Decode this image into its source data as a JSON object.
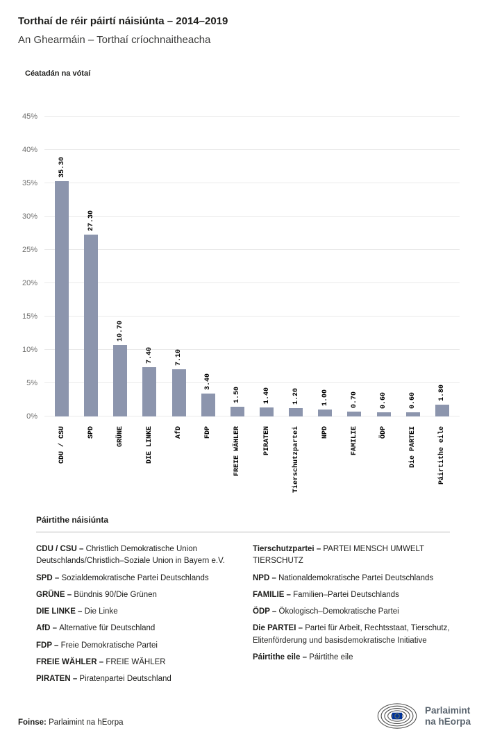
{
  "header": {
    "title": "Torthaí de réir páirtí náisiúnta – 2014–2019",
    "subtitle": "An Ghearmáin – Torthaí críochnaitheacha"
  },
  "chart_data": {
    "type": "bar",
    "title": "Céatadán na vótaí",
    "categories": [
      "CDU / CSU",
      "SPD",
      "GRÜNE",
      "DIE LINKE",
      "AfD",
      "FDP",
      "FREIE WÄHLER",
      "PIRATEN",
      "Tierschutzpartei",
      "NPD",
      "FAMILIE",
      "ÖDP",
      "Die PARTEI",
      "Páirtithe eile"
    ],
    "values": [
      35.3,
      27.3,
      10.7,
      7.4,
      7.1,
      3.4,
      1.5,
      1.4,
      1.2,
      1.0,
      0.7,
      0.6,
      0.6,
      1.8
    ],
    "value_labels": [
      "35.30",
      "27.30",
      "10.70",
      "7.40",
      "7.10",
      "3.40",
      "1.50",
      "1.40",
      "1.20",
      "1.00",
      "0.70",
      "0.60",
      "0.60",
      "1.80"
    ],
    "xlabel": "",
    "ylabel": "Céatadán na vótaí",
    "ylim": [
      0,
      45
    ],
    "ytick_step": 5,
    "ytick_labels": [
      "0%",
      "5%",
      "10%",
      "15%",
      "20%",
      "25%",
      "30%",
      "35%",
      "40%",
      "45%"
    ],
    "bar_color": "#8c95ad",
    "grid": true,
    "legend_position": "none"
  },
  "legend": {
    "heading": "Páirtithe náisiúnta",
    "columns": [
      [
        {
          "abbr": "CDU / CSU –",
          "name": "Christlich Demokratische Union Deutschlands/Christlich–Soziale Union in Bayern e.V."
        },
        {
          "abbr": "SPD –",
          "name": "Sozialdemokratische Partei Deutschlands"
        },
        {
          "abbr": "GRÜNE –",
          "name": "Bündnis 90/Die Grünen"
        },
        {
          "abbr": "DIE LINKE –",
          "name": "Die Linke"
        },
        {
          "abbr": "AfD –",
          "name": "Alternative für Deutschland"
        },
        {
          "abbr": "FDP –",
          "name": "Freie Demokratische Partei"
        },
        {
          "abbr": "FREIE WÄHLER –",
          "name": "FREIE WÄHLER"
        },
        {
          "abbr": "PIRATEN –",
          "name": "Piratenpartei Deutschland"
        }
      ],
      [
        {
          "abbr": "Tierschutzpartei –",
          "name": "PARTEI MENSCH UMWELT TIERSCHUTZ"
        },
        {
          "abbr": "NPD –",
          "name": "Nationaldemokratische Partei Deutschlands"
        },
        {
          "abbr": "FAMILIE –",
          "name": "Familien–Partei Deutschlands"
        },
        {
          "abbr": "ÖDP –",
          "name": "Ökologisch–Demokratische Partei"
        },
        {
          "abbr": "Die PARTEI –",
          "name": "Partei für Arbeit, Rechtsstaat, Tierschutz, Elitenförderung und basisdemokratische Initiative"
        },
        {
          "abbr": "Páirtithe eile –",
          "name": "Páirtithe eile"
        }
      ]
    ]
  },
  "footer": {
    "source_label": "Foinse:",
    "source_text": "Parlaimint na hEorpa",
    "logo_line1": "Parlaimint",
    "logo_line2": "na hEorpa"
  },
  "colors": {
    "bar": "#8c95ad",
    "gridline": "#e9e9e9",
    "logo_text": "#5a646e",
    "eu_flag_blue": "#003399",
    "eu_star_yellow": "#ffcc00"
  }
}
